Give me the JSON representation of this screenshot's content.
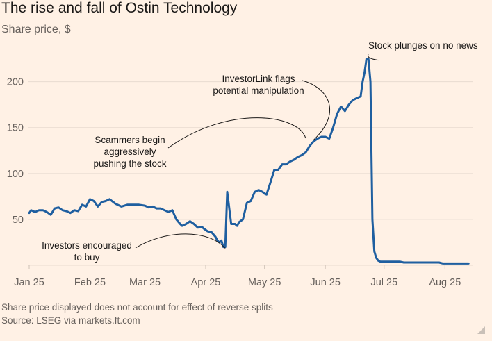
{
  "header": {
    "title": "The rise and fall of Ostin Technology",
    "subtitle": "Share price, $"
  },
  "footer": {
    "footnote": "Share price displayed does not account for effect of reverse splits",
    "source": "Source: LSEG via markets.ft.com"
  },
  "colors": {
    "background": "#fff1e5",
    "line": "#1f5fa0",
    "grid": "#e8dbd0",
    "axis_text": "#66605c",
    "annotation": "#1a1817"
  },
  "chart_data": {
    "type": "line",
    "title": "The rise and fall of Ostin Technology",
    "ylabel": "Share price, $",
    "xlim": [
      0,
      225
    ],
    "ylim": [
      0,
      230
    ],
    "yticks": [
      50,
      100,
      150,
      200
    ],
    "xticks": [
      {
        "label": "Jan 25",
        "x": 0
      },
      {
        "label": "Feb 25",
        "x": 31
      },
      {
        "label": "Mar 25",
        "x": 59
      },
      {
        "label": "Apr 25",
        "x": 90
      },
      {
        "label": "May 25",
        "x": 120
      },
      {
        "label": "Jun 25",
        "x": 151
      },
      {
        "label": "Jul 25",
        "x": 181
      },
      {
        "label": "Aug 25",
        "x": 212
      }
    ],
    "series": [
      {
        "name": "Ostin Technology",
        "x": [
          0,
          1,
          3,
          5,
          7,
          9,
          11,
          13,
          15,
          17,
          19,
          21,
          23,
          25,
          27,
          29,
          31,
          33,
          35,
          37,
          39,
          41,
          44,
          47,
          50,
          53,
          56,
          59,
          61,
          63,
          65,
          67,
          69,
          71,
          73,
          75,
          77,
          78,
          80,
          82,
          84,
          86,
          88,
          89,
          91,
          93,
          95,
          96,
          97,
          98,
          99,
          100,
          101,
          103,
          105,
          106,
          107,
          109,
          111,
          113,
          115,
          117,
          119,
          120,
          121,
          123,
          125,
          127,
          129,
          131,
          133,
          135,
          137,
          139,
          141,
          143,
          145,
          147,
          149,
          151,
          153,
          155,
          157,
          159,
          161,
          163,
          165,
          167,
          169,
          170,
          171,
          172,
          173,
          174,
          175,
          176,
          177,
          178,
          179,
          181,
          183,
          185,
          187,
          189,
          191,
          193,
          195,
          197,
          199,
          201,
          203,
          205,
          207,
          209,
          211,
          213,
          215,
          217,
          219,
          221,
          223,
          224
        ],
        "values": [
          57,
          60,
          58,
          60,
          60,
          58,
          55,
          62,
          63,
          60,
          59,
          57,
          60,
          59,
          66,
          64,
          72,
          70,
          64,
          69,
          70,
          72,
          67,
          64,
          66,
          66,
          66,
          65,
          63,
          64,
          62,
          62,
          60,
          58,
          60,
          50,
          45,
          43,
          45,
          48,
          45,
          41,
          42,
          40,
          37,
          36,
          31,
          27,
          25,
          27,
          20,
          20,
          80,
          45,
          45,
          43,
          47,
          50,
          68,
          70,
          80,
          82,
          80,
          78,
          77,
          90,
          104,
          104,
          110,
          110,
          113,
          115,
          118,
          120,
          123,
          130,
          135,
          138,
          140,
          140,
          138,
          150,
          165,
          173,
          168,
          175,
          180,
          182,
          184,
          200,
          210,
          225,
          225,
          200,
          50,
          15,
          8,
          5,
          4,
          4,
          4,
          4,
          4,
          4,
          3,
          3,
          3,
          3,
          3,
          3,
          3,
          3,
          3,
          3,
          2,
          2,
          2,
          2,
          2,
          2,
          2,
          2
        ]
      }
    ],
    "annotations": [
      {
        "id": "investors",
        "lines": [
          "Investors encouraged",
          "to buy"
        ],
        "target_x": 100,
        "target_y": 20
      },
      {
        "id": "scammers",
        "lines": [
          "Scammers begin",
          "aggressively",
          "pushing the stock"
        ],
        "target_x": 141,
        "target_y": 140
      },
      {
        "id": "investorlink",
        "lines": [
          "InvestorLink flags",
          "potential manipulation"
        ],
        "target_x": 145,
        "target_y": 138
      },
      {
        "id": "plunge",
        "lines": [
          "Stock plunges on no news"
        ],
        "target_x": 178,
        "target_y": 225
      }
    ]
  }
}
